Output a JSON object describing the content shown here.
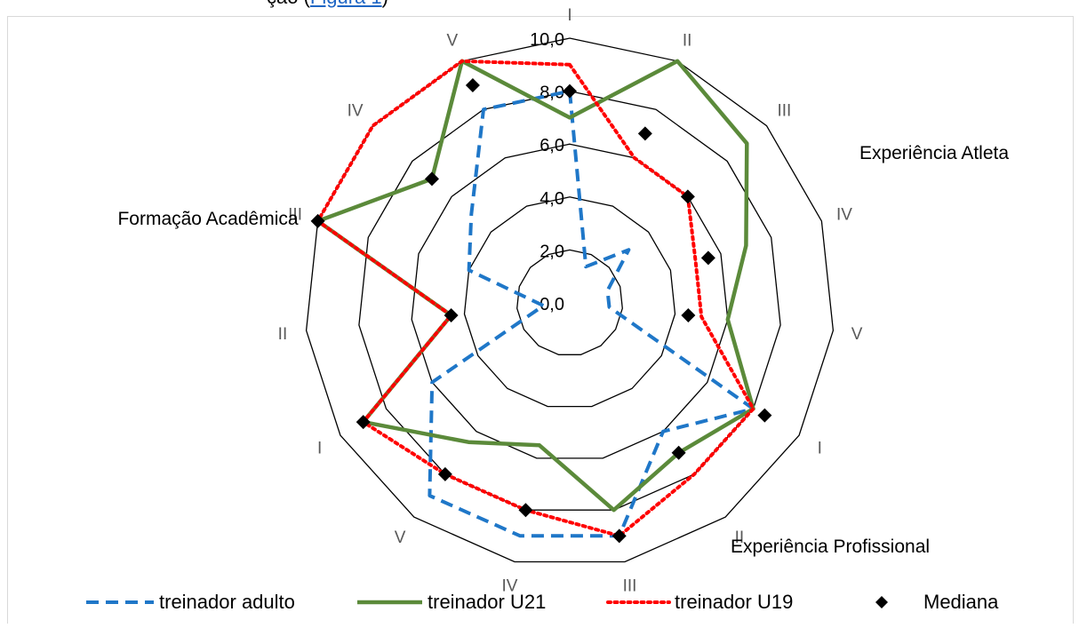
{
  "top_fragment": {
    "text": "ção (",
    "link_text": "Figura 1",
    "close": ")"
  },
  "chart_data": {
    "type": "radar",
    "axes": [
      "I",
      "II",
      "III",
      "IV",
      "V",
      "I",
      "II",
      "III",
      "IV",
      "V",
      "I",
      "II",
      "III",
      "IV",
      "V"
    ],
    "groups": [
      {
        "label": "Experiência Atleta",
        "axis_indices": [
          0,
          1,
          2,
          3,
          4
        ]
      },
      {
        "label": "Experiência Profissional",
        "axis_indices": [
          5,
          6,
          7,
          8,
          9
        ]
      },
      {
        "label": "Formação Acadêmica",
        "axis_indices": [
          10,
          11,
          12,
          13,
          14
        ]
      }
    ],
    "rlim": [
      0,
      10
    ],
    "ticks": [
      "0,0",
      "2,0",
      "4,0",
      "6,0",
      "8,0",
      "10,0"
    ],
    "series": [
      {
        "name": "treinador adulto",
        "color": "#1f77c8",
        "style": "dashed",
        "values": [
          8,
          1.5,
          3,
          1.5,
          1.5,
          8,
          6,
          9,
          9,
          9,
          6,
          1,
          4,
          5,
          8
        ]
      },
      {
        "name": "treinador U21",
        "color": "#5b8a3a",
        "style": "solid",
        "values": [
          7,
          10,
          9,
          7,
          6,
          8,
          7,
          8,
          5.5,
          6.5,
          9,
          4.5,
          10,
          7,
          10
        ]
      },
      {
        "name": "treinador U19",
        "color": "#ff0000",
        "style": "dotted",
        "values": [
          9,
          6,
          6,
          5,
          5,
          8,
          8,
          9,
          8,
          8,
          9,
          4.5,
          10,
          10,
          10
        ]
      },
      {
        "name": "Mediana",
        "color": "#000000",
        "style": "marker",
        "values": [
          8,
          7,
          6,
          5.5,
          4.5,
          8.5,
          7,
          9,
          8,
          8,
          9,
          4.5,
          10,
          7,
          9
        ]
      }
    ]
  }
}
